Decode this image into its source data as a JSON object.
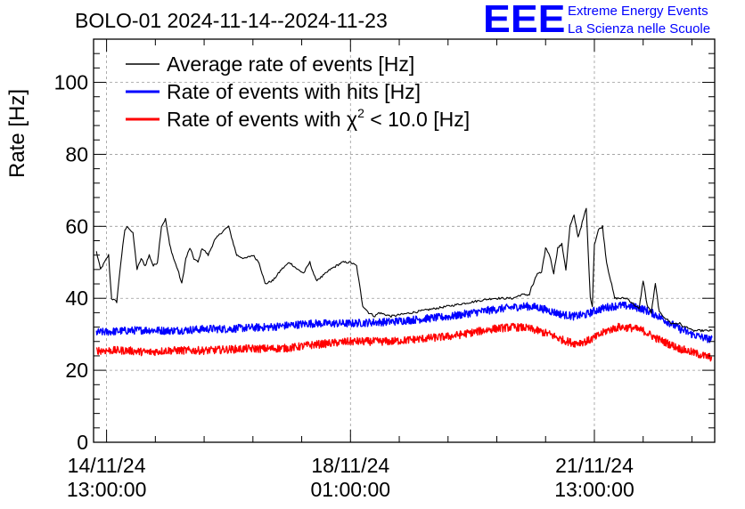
{
  "header": {
    "title": "BOLO-01 2024-11-14--2024-11-23",
    "logo": "EEE",
    "logo_line1": "Extreme Energy Events",
    "logo_line2": "La Scienza nelle Scuole"
  },
  "colors": {
    "avg": "#000000",
    "hits": "#0000ff",
    "chi2": "#ff0000",
    "grid": "#9a9a9a"
  },
  "chart_data": {
    "type": "line",
    "title": "BOLO-01 2024-11-14--2024-11-23",
    "xlabel": "",
    "ylabel": "Rate [Hz]",
    "ylim": [
      0,
      112
    ],
    "xlim_hours": [
      -3.2,
      149.6
    ],
    "x_unit": "hours since 14/11/24 13:00:00",
    "yticks": [
      0,
      20,
      40,
      60,
      80,
      100
    ],
    "xticks": [
      {
        "hours": 0,
        "line1": "14/11/24",
        "line2": "13:00:00"
      },
      {
        "hours": 60,
        "line1": "18/11/24",
        "line2": "01:00:00"
      },
      {
        "hours": 120,
        "line1": "21/11/24",
        "line2": "13:00:00"
      }
    ],
    "grid": true,
    "legend_position": "top-left",
    "series": [
      {
        "name": "Average rate of events [Hz]",
        "legend_main": "Average rate of events [Hz]",
        "color": "#000000",
        "noise": 0.6,
        "x": [
          -2.5,
          -1.5,
          -0.5,
          0.5,
          1.2,
          2.5,
          3.5,
          4.5,
          5.2,
          6.5,
          7.5,
          8.5,
          9.5,
          10.5,
          11.5,
          12.5,
          13.5,
          14.5,
          15.5,
          16.5,
          17.5,
          18.5,
          19.5,
          20.5,
          21.5,
          22.5,
          23.5,
          25,
          26.5,
          28,
          30,
          32,
          34,
          36,
          37.5,
          39,
          41,
          43,
          45,
          47,
          48.5,
          50,
          51.5,
          53,
          55,
          56.5,
          58,
          60,
          61.5,
          63,
          64.5,
          66,
          67,
          70,
          75,
          80,
          85,
          90,
          95,
          100,
          102,
          104,
          104.5,
          105,
          106,
          107,
          108,
          109,
          110,
          111,
          112,
          113,
          114,
          115,
          116,
          117,
          118,
          119,
          119.5,
          120,
          121,
          122,
          123,
          124,
          125,
          126,
          127,
          128,
          129,
          130,
          131,
          132,
          133,
          134,
          135,
          136,
          137,
          138,
          139,
          140,
          141,
          142,
          143,
          144,
          145,
          146,
          147,
          148,
          149
        ],
        "y": [
          53,
          48,
          50,
          52,
          40,
          39,
          50,
          59,
          60,
          58,
          48,
          51,
          49,
          52,
          49,
          50,
          60,
          62,
          55,
          51,
          48,
          44,
          51,
          54,
          51,
          50,
          54,
          52,
          56,
          58,
          60,
          52,
          51,
          52,
          50,
          44,
          45,
          48,
          50,
          48,
          47,
          50,
          45,
          46,
          48,
          49,
          50,
          50,
          49,
          38,
          36,
          35,
          36,
          35,
          36,
          37,
          38,
          39,
          40,
          40,
          41,
          41,
          43,
          44,
          47,
          47,
          54,
          52,
          47,
          54,
          55,
          48,
          60,
          63,
          57,
          61,
          65,
          40,
          38,
          55,
          59,
          60,
          50,
          45,
          40,
          40,
          40,
          40,
          39,
          38,
          37,
          45,
          38,
          36,
          44,
          36,
          35,
          34,
          33,
          33,
          33,
          32,
          32,
          31,
          31,
          31,
          31,
          31,
          31
        ]
      },
      {
        "name": "Rate of events with hits [Hz]",
        "legend_main": "Rate of events with hits [Hz]",
        "color": "#0000ff",
        "noise": 2.2,
        "x": [
          -2.5,
          5,
          10,
          15,
          20,
          25,
          30,
          35,
          40,
          45,
          50,
          55,
          60,
          65,
          70,
          75,
          80,
          85,
          90,
          95,
          100,
          103,
          106,
          109,
          112,
          115,
          118,
          120,
          123,
          126,
          129,
          132,
          135,
          138,
          141,
          144,
          147,
          149
        ],
        "y": [
          30.5,
          31,
          31.2,
          31,
          31.2,
          31.5,
          31.5,
          31.8,
          32,
          32.5,
          33,
          33,
          33,
          33.3,
          33.5,
          34,
          34.5,
          35,
          36,
          36.8,
          37.5,
          37.8,
          37.5,
          36.5,
          35.5,
          35,
          35.5,
          36.5,
          37.5,
          38,
          37.8,
          37,
          35.5,
          33.5,
          31.5,
          30,
          29,
          28.5
        ]
      },
      {
        "name": "Rate of events with χ2 < 10.0 [Hz]",
        "legend_main": "Rate of events with χ",
        "legend_sup": "2",
        "legend_tail": " < 10.0 [Hz]",
        "color": "#ff0000",
        "noise": 2.2,
        "x": [
          -2.5,
          5,
          10,
          15,
          20,
          25,
          30,
          35,
          40,
          45,
          50,
          55,
          60,
          65,
          70,
          75,
          80,
          85,
          90,
          95,
          100,
          103,
          106,
          109,
          112,
          115,
          118,
          120,
          123,
          126,
          129,
          132,
          135,
          138,
          141,
          144,
          147,
          149
        ],
        "y": [
          25.5,
          25.5,
          25,
          25.5,
          25.5,
          25.5,
          25.8,
          26,
          26,
          26.2,
          27,
          27.5,
          28,
          28,
          28,
          28.5,
          29,
          29.5,
          30.5,
          31.5,
          32,
          31.8,
          31,
          30,
          28.5,
          27.5,
          28,
          29,
          31,
          32,
          31.8,
          31,
          29,
          27.5,
          26,
          25,
          24,
          23.5
        ]
      }
    ]
  }
}
